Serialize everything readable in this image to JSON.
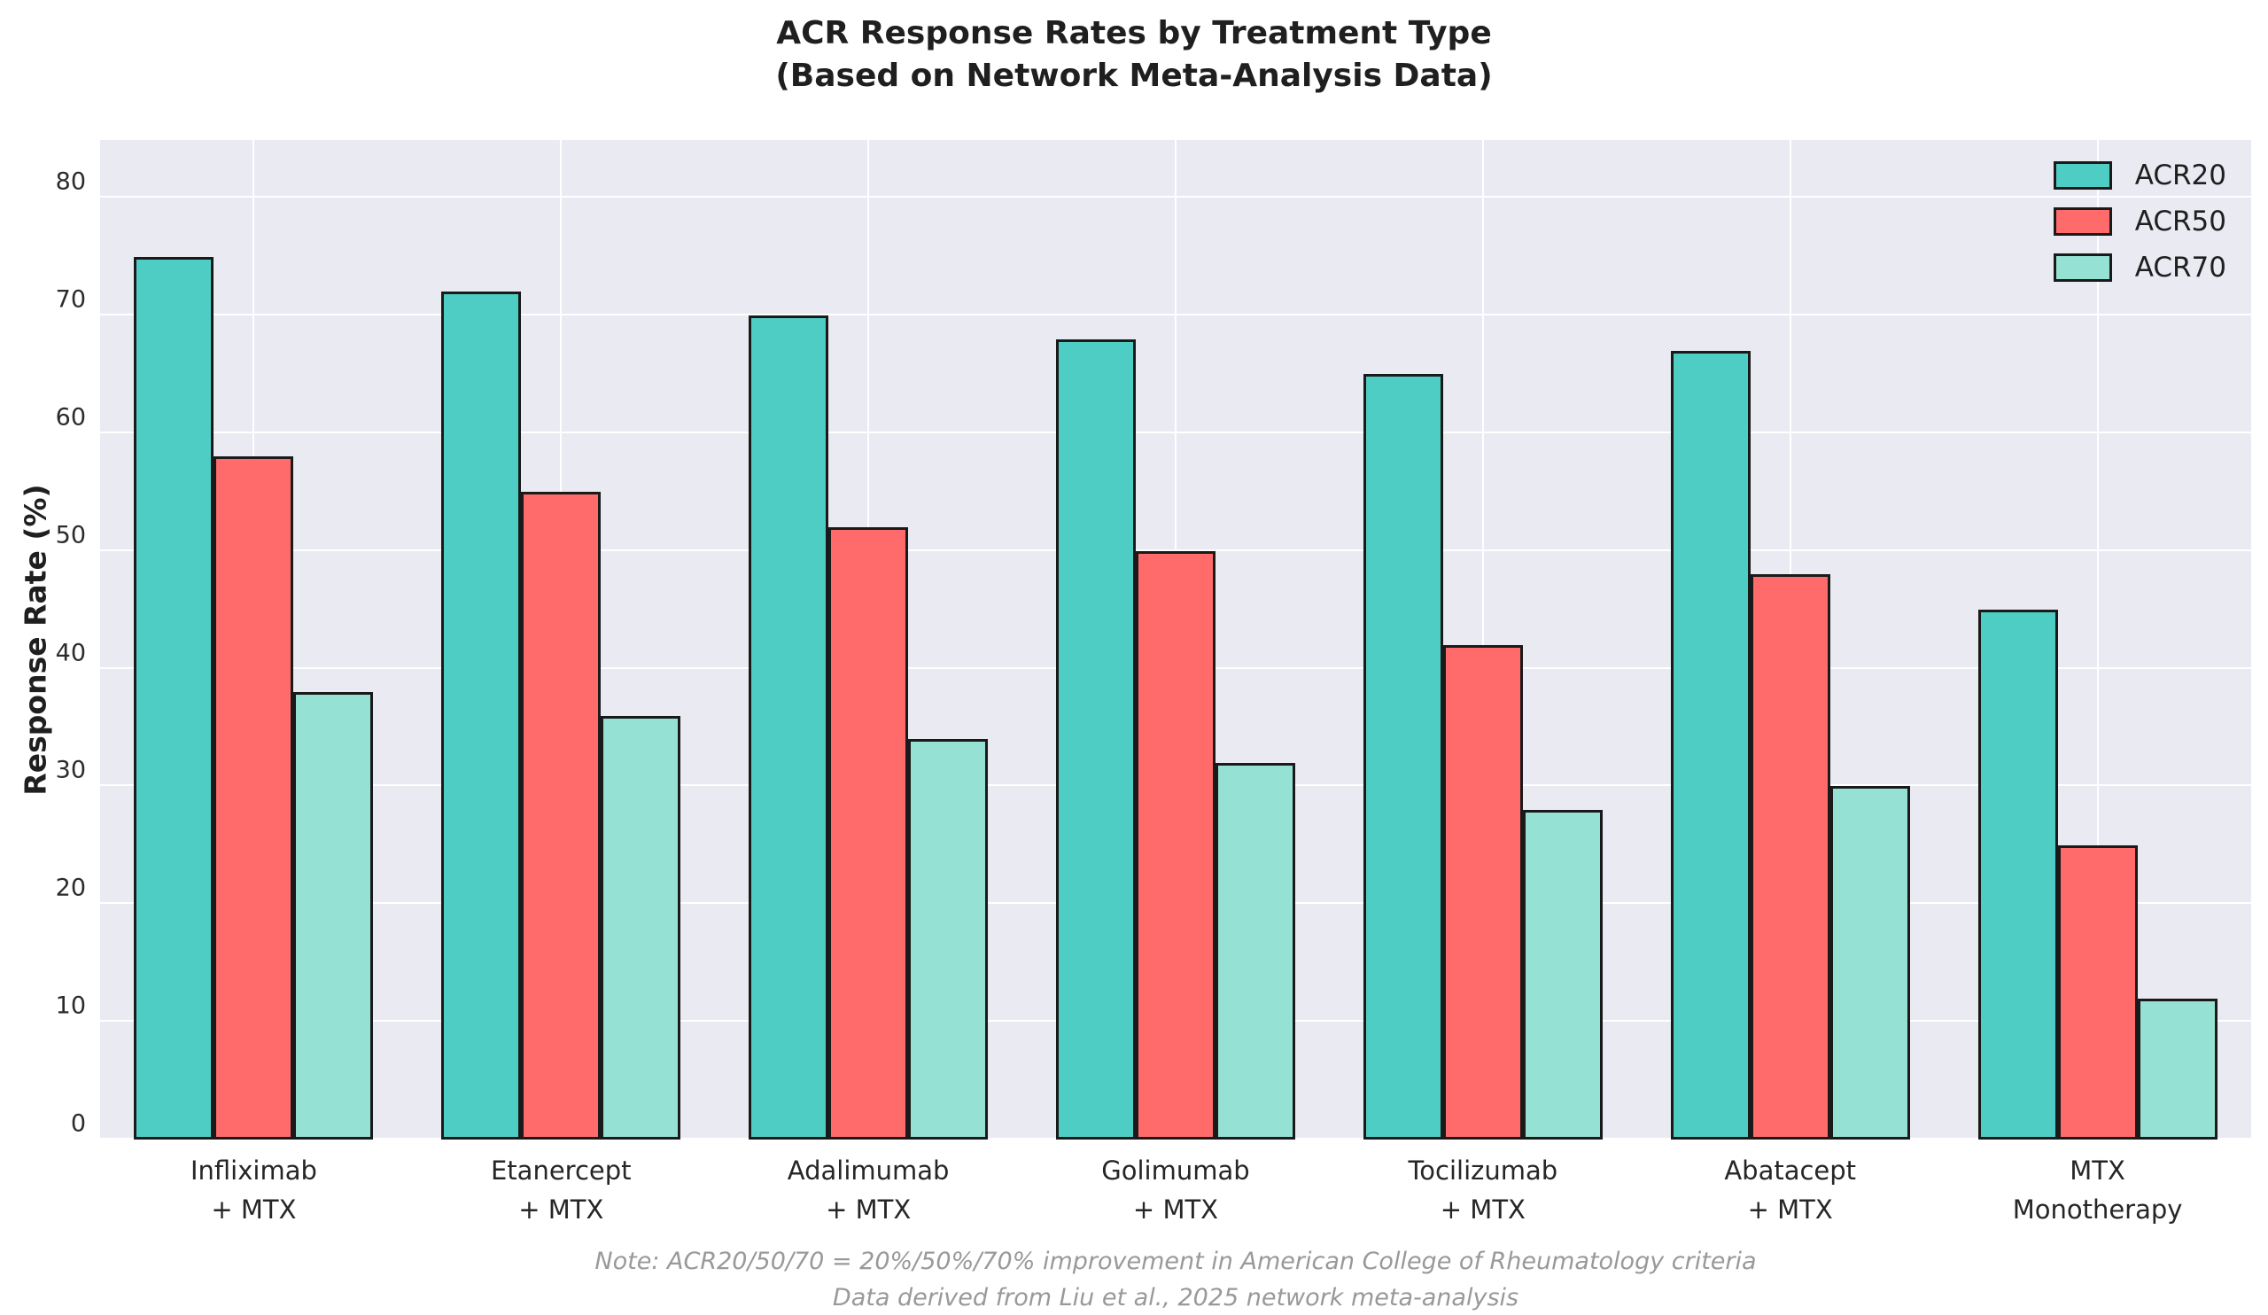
{
  "chart_data": {
    "type": "bar",
    "title": "ACR Response Rates by Treatment Type",
    "subtitle": "(Based on Network Meta-Analysis Data)",
    "ylabel": "Response Rate (%)",
    "xlabel": "",
    "ylim": [
      0,
      84.9
    ],
    "yticks": [
      0,
      10,
      20,
      30,
      40,
      50,
      60,
      70,
      80
    ],
    "grid": true,
    "legend_position": "upper right",
    "categories": [
      [
        "Infliximab",
        "+ MTX"
      ],
      [
        "Etanercept",
        "+ MTX"
      ],
      [
        "Adalimumab",
        "+ MTX"
      ],
      [
        "Golimumab",
        "+ MTX"
      ],
      [
        "Tocilizumab",
        "+ MTX"
      ],
      [
        "Abatacept",
        "+ MTX"
      ],
      [
        "MTX",
        "Monotherapy"
      ]
    ],
    "series": [
      {
        "name": "ACR20",
        "color": "#4ECDC4",
        "values": [
          75,
          72,
          70,
          68,
          65,
          67,
          45
        ]
      },
      {
        "name": "ACR50",
        "color": "#FF6B6B",
        "values": [
          58,
          55,
          52,
          50,
          42,
          48,
          25
        ]
      },
      {
        "name": "ACR70",
        "color": "#95E1D3",
        "values": [
          38,
          36,
          34,
          32,
          28,
          30,
          12
        ]
      }
    ],
    "note_line1": "Note: ACR20/50/70 = 20%/50%/70% improvement in American College of Rheumatology criteria",
    "note_line2": "Data derived from Liu et al., 2025 network meta-analysis",
    "colors": {
      "axes_background": "#EAEAF2",
      "gridline": "#FFFFFF",
      "bar_edge": "#1A1A1A",
      "title_text": "#1F1F1F",
      "tick_text": "#262626",
      "footnote_text": "#999999"
    }
  }
}
